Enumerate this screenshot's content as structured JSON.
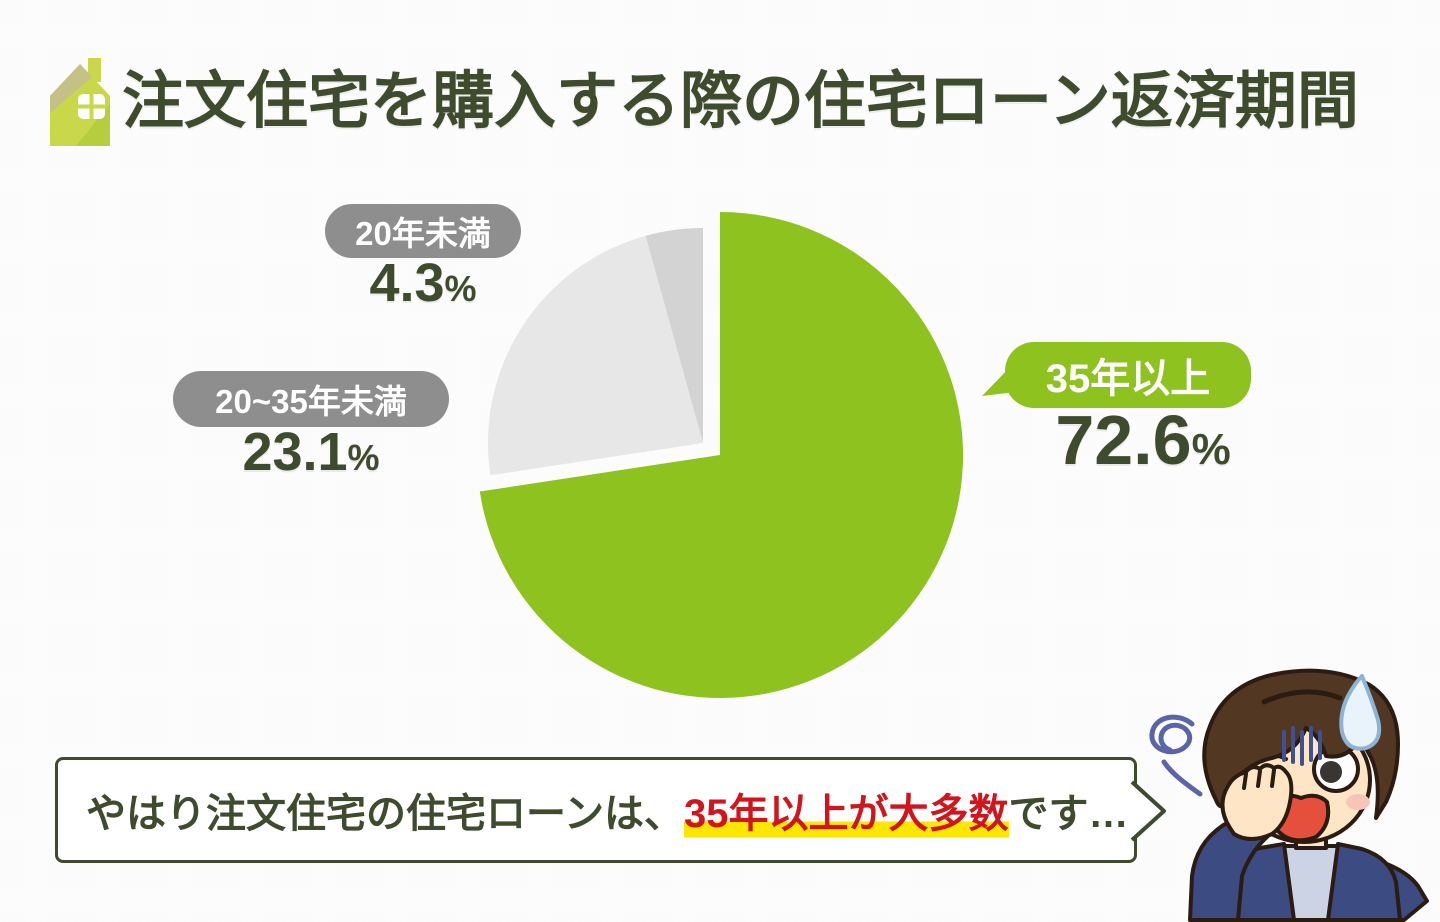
{
  "header": {
    "title": "注文住宅を購入する際の住宅ローン返済期間"
  },
  "chart_data": {
    "type": "pie",
    "title": "注文住宅を購入する際の住宅ローン返済期間",
    "unit": "%",
    "direction": "clockwise",
    "start_angle_deg": 0,
    "legend_position": "around-pie",
    "slices": [
      {
        "label": "35年以上",
        "value": 72.6,
        "color": "#8dc21f",
        "label_bg": "#8dc21f",
        "label_color": "#ffffff",
        "exploded": false
      },
      {
        "label": "20~35年未満",
        "value": 23.1,
        "color": "#e7e7e7",
        "label_bg": "#8e8e8e",
        "label_color": "#ffffff",
        "exploded": true
      },
      {
        "label": "20年未満",
        "value": 4.3,
        "color": "#d3d3d3",
        "label_bg": "#8e8e8e",
        "label_color": "#ffffff",
        "exploded": true
      }
    ]
  },
  "callout": {
    "text_before": "やはり注文住宅の住宅ローンは、",
    "highlight": "35年以上が大多数",
    "text_after": "です…"
  },
  "colors": {
    "accent_green": "#8dc21f",
    "dark_green_text": "#3f4b2d",
    "pill_gray": "#8e8e8e",
    "slice_gray_light": "#e7e7e7",
    "slice_gray_dark": "#d3d3d3",
    "highlight_red": "#d0151c",
    "highlight_yellow": "#ffe600"
  }
}
